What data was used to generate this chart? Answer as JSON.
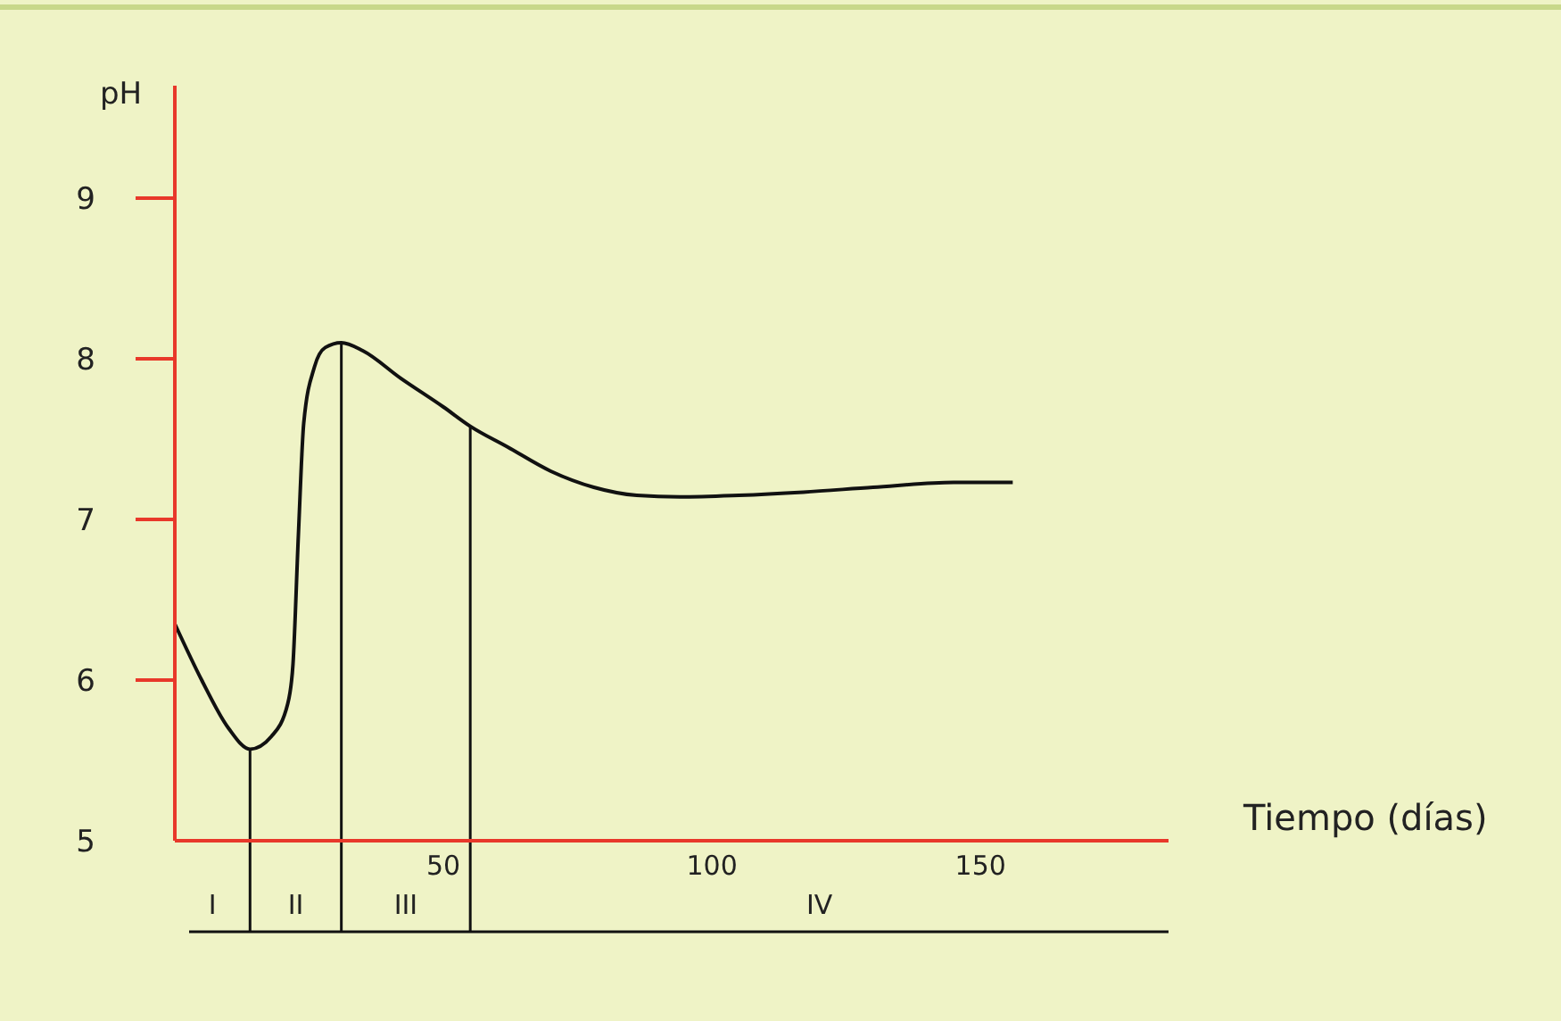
{
  "chart_data": {
    "type": "line",
    "xlabel": "Tiempo (días)",
    "ylabel": "pH",
    "xlim": [
      0,
      185
    ],
    "ylim": [
      5,
      9.7
    ],
    "xticks": [
      50,
      100,
      150
    ],
    "yticks": [
      5,
      6,
      7,
      8,
      9
    ],
    "series": [
      {
        "color": "#111111",
        "x": [
          0,
          5,
          10,
          14,
          18,
          21,
          22,
          23,
          24,
          26,
          28,
          31,
          35,
          42,
          50,
          55,
          62,
          70,
          78,
          86,
          94,
          105,
          117,
          130,
          145,
          156
        ],
        "values": [
          6.35,
          6.0,
          5.7,
          5.57,
          5.65,
          5.85,
          6.1,
          6.9,
          7.6,
          7.95,
          8.07,
          8.1,
          8.05,
          7.88,
          7.7,
          7.58,
          7.45,
          7.3,
          7.2,
          7.15,
          7.14,
          7.15,
          7.17,
          7.2,
          7.23,
          7.23
        ]
      }
    ],
    "ref_lines": [
      {
        "axis": "x",
        "value": 14
      },
      {
        "axis": "x",
        "value": 31
      },
      {
        "axis": "x",
        "value": 55
      }
    ],
    "annotations": [
      "I",
      "II",
      "III",
      "IV"
    ],
    "grid": false,
    "marker": "none",
    "line_style": "solid"
  }
}
